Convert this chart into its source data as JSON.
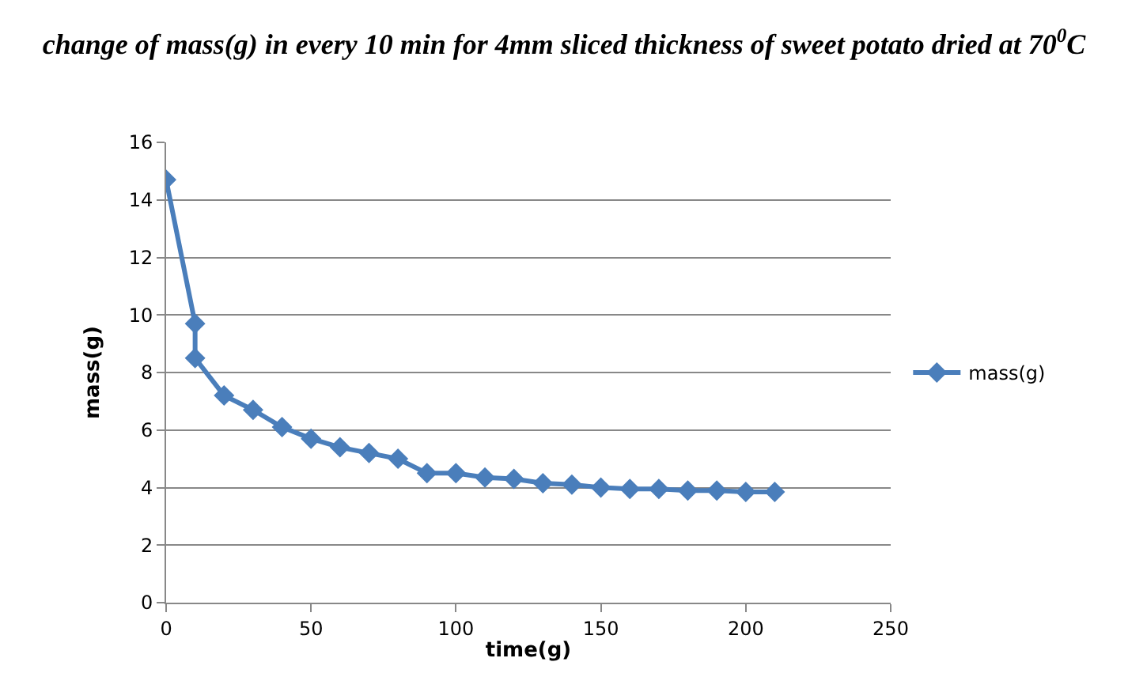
{
  "chart_data": {
    "type": "line",
    "title": "change of mass(g) in every 10 min for 4mm sliced thickness of sweet potato dried at 70$^{0}$C",
    "xlabel": "time(g)",
    "ylabel": "mass(g)",
    "x": [
      0,
      10,
      10,
      20,
      30,
      40,
      50,
      60,
      70,
      80,
      90,
      100,
      110,
      120,
      130,
      140,
      150,
      160,
      170,
      180,
      190,
      200,
      210
    ],
    "series": [
      {
        "name": "mass(g)",
        "color": "#4a7ebb",
        "values": [
          14.7,
          9.7,
          8.5,
          7.2,
          6.7,
          6.1,
          5.7,
          5.4,
          5.2,
          5.0,
          4.5,
          4.5,
          4.35,
          4.3,
          4.15,
          4.1,
          4.0,
          3.95,
          3.95,
          3.9,
          3.9,
          3.85,
          3.85
        ]
      }
    ],
    "xlim": [
      0,
      250
    ],
    "xticks": [
      0,
      50,
      100,
      150,
      200,
      250
    ],
    "ylim": [
      0,
      16
    ],
    "yticks": [
      0,
      2,
      4,
      6,
      8,
      10,
      12,
      14,
      16
    ],
    "grid": "y",
    "legend": "right",
    "marker": "diamond",
    "line_style": "solid"
  }
}
